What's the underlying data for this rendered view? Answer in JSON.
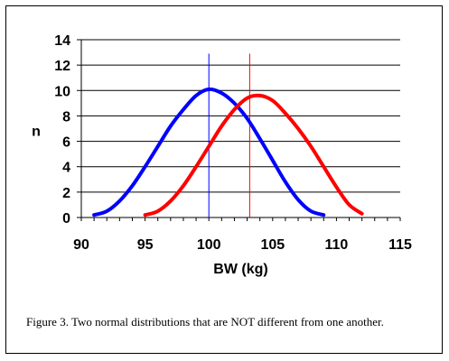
{
  "chart_data": {
    "type": "line",
    "title": "",
    "xlabel": "BW (kg)",
    "ylabel": "n",
    "xlim": [
      90,
      115
    ],
    "ylim": [
      0,
      14
    ],
    "xticks": [
      90,
      95,
      100,
      105,
      110,
      115
    ],
    "yticks": [
      0,
      2,
      4,
      6,
      8,
      10,
      12,
      14
    ],
    "grid": "horizontal",
    "series": [
      {
        "color": "#0000ff",
        "x": [
          91,
          92,
          93,
          94,
          95,
          96,
          97,
          98,
          99,
          100,
          101,
          102,
          103,
          104,
          105,
          106,
          107,
          108,
          109
        ],
        "values": [
          0.2,
          0.5,
          1.3,
          2.5,
          4.0,
          5.6,
          7.2,
          8.5,
          9.6,
          10.1,
          9.8,
          9.0,
          7.8,
          6.2,
          4.5,
          2.8,
          1.4,
          0.5,
          0.2
        ]
      },
      {
        "color": "#ff0000",
        "x": [
          95,
          96,
          97,
          98,
          99,
          100,
          101,
          102,
          103,
          104,
          105,
          106,
          107,
          108,
          109,
          110,
          111,
          112
        ],
        "values": [
          0.2,
          0.5,
          1.3,
          2.5,
          4.0,
          5.6,
          7.2,
          8.5,
          9.4,
          9.6,
          9.2,
          8.2,
          7.0,
          5.6,
          4.0,
          2.4,
          1.0,
          0.3
        ]
      }
    ],
    "reference_lines": [
      {
        "x": 100,
        "color": "#0000ff"
      },
      {
        "x": 103.2,
        "color": "#ff0000"
      }
    ]
  },
  "caption": "Figure 3.  Two normal distributions that are NOT different from one another."
}
